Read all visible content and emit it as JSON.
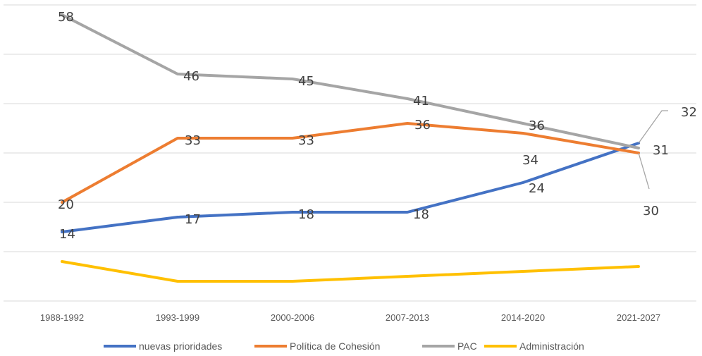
{
  "chart_data": {
    "type": "line",
    "categories": [
      "1988-1992",
      "1993-1999",
      "2000-2006",
      "2007-2013",
      "2014-2020",
      "2021-2027"
    ],
    "ylim": [
      0,
      60
    ],
    "grid": true,
    "legend_position": "bottom",
    "series": [
      {
        "name": "nuevas prioridades",
        "color": "#4472c4",
        "values": [
          14,
          17,
          18,
          18,
          24,
          32
        ],
        "labels": [
          "14",
          "17",
          "18",
          "18",
          "24",
          "32"
        ]
      },
      {
        "name": "Política de Cohesión",
        "color": "#ed7d31",
        "values": [
          20,
          33,
          33,
          36,
          34,
          30
        ],
        "labels": [
          "20",
          "33",
          "33",
          "36",
          "34",
          "30"
        ]
      },
      {
        "name": "PAC",
        "color": "#a5a5a5",
        "values": [
          58,
          46,
          45,
          41,
          36,
          31
        ],
        "labels": [
          "58",
          "46",
          "45",
          "41",
          "36",
          "31"
        ]
      },
      {
        "name": "Administración",
        "color": "#ffc000",
        "values": [
          8,
          4,
          4,
          5,
          6,
          7
        ],
        "labels": []
      }
    ]
  }
}
